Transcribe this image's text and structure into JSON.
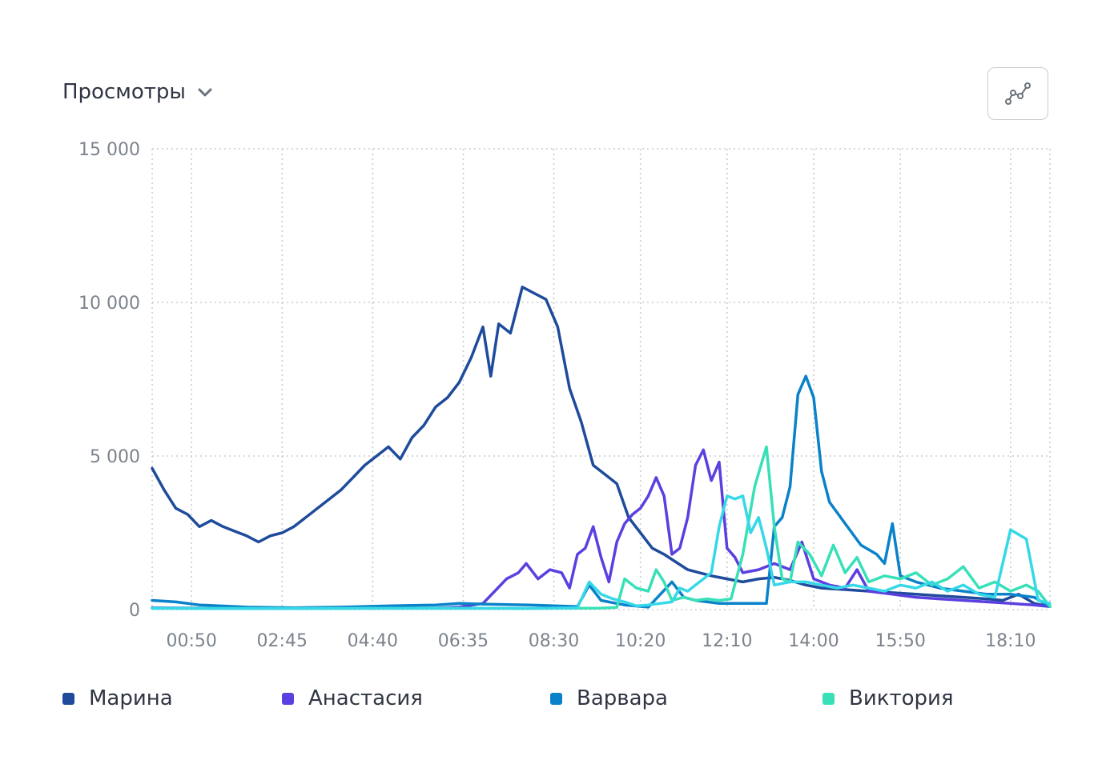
{
  "header": {
    "metric_label": "Просмотры"
  },
  "icons": {
    "metric_dropdown": "chevron-down-icon",
    "chart_type_button": "line-chart-icon"
  },
  "chart_data": {
    "type": "line",
    "ylim": [
      0,
      15000
    ],
    "y_ticks": [
      0,
      5000,
      10000,
      15000
    ],
    "y_tick_labels": [
      "0",
      "5 000",
      "10 000",
      "15 000"
    ],
    "x_range": [
      "00:00",
      "19:00"
    ],
    "x_ticks": [
      "00:50",
      "02:45",
      "04:40",
      "06:35",
      "08:30",
      "10:20",
      "12:10",
      "14:00",
      "15:50",
      "18:10"
    ],
    "grid": true,
    "legend_position": "bottom",
    "series": [
      {
        "name": "Марина",
        "color": "#1e4b9b",
        "points": [
          [
            "00:00",
            4600
          ],
          [
            "00:15",
            3900
          ],
          [
            "00:30",
            3300
          ],
          [
            "00:45",
            3100
          ],
          [
            "01:00",
            2700
          ],
          [
            "01:15",
            2900
          ],
          [
            "01:30",
            2700
          ],
          [
            "01:45",
            2550
          ],
          [
            "02:00",
            2400
          ],
          [
            "02:15",
            2200
          ],
          [
            "02:30",
            2400
          ],
          [
            "02:45",
            2500
          ],
          [
            "03:00",
            2700
          ],
          [
            "03:15",
            3000
          ],
          [
            "03:30",
            3300
          ],
          [
            "03:45",
            3600
          ],
          [
            "04:00",
            3900
          ],
          [
            "04:15",
            4300
          ],
          [
            "04:30",
            4700
          ],
          [
            "04:45",
            5000
          ],
          [
            "05:00",
            5300
          ],
          [
            "05:15",
            4900
          ],
          [
            "05:30",
            5600
          ],
          [
            "05:45",
            6000
          ],
          [
            "06:00",
            6600
          ],
          [
            "06:15",
            6900
          ],
          [
            "06:30",
            7400
          ],
          [
            "06:45",
            8200
          ],
          [
            "07:00",
            9200
          ],
          [
            "07:10",
            7600
          ],
          [
            "07:20",
            9300
          ],
          [
            "07:35",
            9000
          ],
          [
            "07:50",
            10500
          ],
          [
            "08:05",
            10300
          ],
          [
            "08:20",
            10100
          ],
          [
            "08:35",
            9200
          ],
          [
            "08:50",
            7200
          ],
          [
            "09:05",
            6100
          ],
          [
            "09:20",
            4700
          ],
          [
            "09:35",
            4400
          ],
          [
            "09:50",
            4100
          ],
          [
            "10:05",
            3000
          ],
          [
            "10:20",
            2500
          ],
          [
            "10:35",
            2000
          ],
          [
            "10:50",
            1800
          ],
          [
            "11:05",
            1550
          ],
          [
            "11:20",
            1300
          ],
          [
            "11:35",
            1200
          ],
          [
            "11:50",
            1100
          ],
          [
            "12:10",
            1000
          ],
          [
            "12:30",
            900
          ],
          [
            "12:50",
            1000
          ],
          [
            "13:10",
            1050
          ],
          [
            "13:30",
            950
          ],
          [
            "13:50",
            800
          ],
          [
            "14:10",
            700
          ],
          [
            "14:40",
            650
          ],
          [
            "15:10",
            600
          ],
          [
            "15:40",
            550
          ],
          [
            "16:10",
            500
          ],
          [
            "16:40",
            450
          ],
          [
            "17:10",
            400
          ],
          [
            "17:40",
            350
          ],
          [
            "18:00",
            300
          ],
          [
            "18:20",
            500
          ],
          [
            "18:40",
            200
          ],
          [
            "19:00",
            100
          ]
        ]
      },
      {
        "name": "Анастасия",
        "color": "#5b3fe0",
        "points": [
          [
            "00:00",
            60
          ],
          [
            "01:00",
            50
          ],
          [
            "02:00",
            50
          ],
          [
            "03:00",
            50
          ],
          [
            "04:00",
            50
          ],
          [
            "05:00",
            50
          ],
          [
            "06:00",
            50
          ],
          [
            "06:30",
            80
          ],
          [
            "07:00",
            200
          ],
          [
            "07:15",
            600
          ],
          [
            "07:30",
            1000
          ],
          [
            "07:45",
            1200
          ],
          [
            "07:55",
            1500
          ],
          [
            "08:10",
            1000
          ],
          [
            "08:25",
            1300
          ],
          [
            "08:40",
            1200
          ],
          [
            "08:50",
            700
          ],
          [
            "09:00",
            1800
          ],
          [
            "09:10",
            2000
          ],
          [
            "09:20",
            2700
          ],
          [
            "09:30",
            1700
          ],
          [
            "09:40",
            900
          ],
          [
            "09:50",
            2200
          ],
          [
            "10:00",
            2800
          ],
          [
            "10:10",
            3100
          ],
          [
            "10:20",
            3300
          ],
          [
            "10:30",
            3700
          ],
          [
            "10:40",
            4300
          ],
          [
            "10:50",
            3700
          ],
          [
            "11:00",
            1800
          ],
          [
            "11:10",
            2000
          ],
          [
            "11:20",
            3000
          ],
          [
            "11:30",
            4700
          ],
          [
            "11:40",
            5200
          ],
          [
            "11:50",
            4200
          ],
          [
            "12:00",
            4800
          ],
          [
            "12:10",
            2000
          ],
          [
            "12:20",
            1700
          ],
          [
            "12:30",
            1200
          ],
          [
            "12:50",
            1300
          ],
          [
            "13:10",
            1500
          ],
          [
            "13:30",
            1300
          ],
          [
            "13:45",
            2200
          ],
          [
            "14:00",
            1000
          ],
          [
            "14:20",
            800
          ],
          [
            "14:40",
            700
          ],
          [
            "14:55",
            1300
          ],
          [
            "15:10",
            600
          ],
          [
            "15:40",
            500
          ],
          [
            "16:10",
            400
          ],
          [
            "16:40",
            350
          ],
          [
            "17:10",
            300
          ],
          [
            "17:40",
            250
          ],
          [
            "18:10",
            200
          ],
          [
            "18:40",
            150
          ],
          [
            "19:00",
            100
          ]
        ]
      },
      {
        "name": "Варвара",
        "color": "#0a82c9",
        "points": [
          [
            "00:00",
            300
          ],
          [
            "00:30",
            250
          ],
          [
            "01:00",
            150
          ],
          [
            "02:00",
            80
          ],
          [
            "03:00",
            60
          ],
          [
            "04:00",
            80
          ],
          [
            "05:00",
            120
          ],
          [
            "06:00",
            150
          ],
          [
            "06:30",
            200
          ],
          [
            "07:00",
            180
          ],
          [
            "08:00",
            150
          ],
          [
            "09:00",
            100
          ],
          [
            "09:15",
            800
          ],
          [
            "09:30",
            300
          ],
          [
            "10:00",
            150
          ],
          [
            "10:30",
            80
          ],
          [
            "11:00",
            900
          ],
          [
            "11:15",
            400
          ],
          [
            "11:30",
            300
          ],
          [
            "12:00",
            200
          ],
          [
            "12:30",
            200
          ],
          [
            "13:00",
            200
          ],
          [
            "13:10",
            2700
          ],
          [
            "13:20",
            3000
          ],
          [
            "13:30",
            4000
          ],
          [
            "13:40",
            7000
          ],
          [
            "13:50",
            7600
          ],
          [
            "14:00",
            6900
          ],
          [
            "14:10",
            4500
          ],
          [
            "14:20",
            3500
          ],
          [
            "14:40",
            2800
          ],
          [
            "15:00",
            2100
          ],
          [
            "15:20",
            1800
          ],
          [
            "15:30",
            1500
          ],
          [
            "15:40",
            2800
          ],
          [
            "15:50",
            1100
          ],
          [
            "16:10",
            900
          ],
          [
            "16:40",
            700
          ],
          [
            "17:10",
            600
          ],
          [
            "17:40",
            500
          ],
          [
            "18:10",
            500
          ],
          [
            "18:40",
            400
          ],
          [
            "19:00",
            100
          ]
        ]
      },
      {
        "name": "Виктория",
        "color": "#38e0b8",
        "points": [
          [
            "00:00",
            50
          ],
          [
            "02:00",
            40
          ],
          [
            "04:00",
            40
          ],
          [
            "06:00",
            50
          ],
          [
            "08:00",
            40
          ],
          [
            "09:30",
            50
          ],
          [
            "09:50",
            70
          ],
          [
            "10:00",
            1000
          ],
          [
            "10:15",
            700
          ],
          [
            "10:30",
            600
          ],
          [
            "10:40",
            1300
          ],
          [
            "10:50",
            900
          ],
          [
            "11:00",
            300
          ],
          [
            "11:15",
            400
          ],
          [
            "11:30",
            300
          ],
          [
            "11:45",
            350
          ],
          [
            "12:00",
            300
          ],
          [
            "12:15",
            350
          ],
          [
            "12:30",
            1800
          ],
          [
            "12:45",
            4000
          ],
          [
            "13:00",
            5300
          ],
          [
            "13:10",
            2700
          ],
          [
            "13:20",
            1000
          ],
          [
            "13:30",
            900
          ],
          [
            "13:40",
            2200
          ],
          [
            "13:55",
            1800
          ],
          [
            "14:10",
            1100
          ],
          [
            "14:25",
            2100
          ],
          [
            "14:40",
            1200
          ],
          [
            "14:55",
            1700
          ],
          [
            "15:10",
            900
          ],
          [
            "15:30",
            1100
          ],
          [
            "15:50",
            1000
          ],
          [
            "16:10",
            1200
          ],
          [
            "16:30",
            800
          ],
          [
            "16:50",
            1000
          ],
          [
            "17:10",
            1400
          ],
          [
            "17:30",
            700
          ],
          [
            "17:50",
            900
          ],
          [
            "18:10",
            600
          ],
          [
            "18:30",
            800
          ],
          [
            "18:45",
            600
          ],
          [
            "19:00",
            100
          ]
        ]
      },
      {
        "name": "",
        "color": "#36d8e8",
        "points": [
          [
            "00:00",
            40
          ],
          [
            "02:00",
            30
          ],
          [
            "04:00",
            40
          ],
          [
            "06:00",
            40
          ],
          [
            "08:00",
            40
          ],
          [
            "09:00",
            60
          ],
          [
            "09:15",
            900
          ],
          [
            "09:30",
            500
          ],
          [
            "09:45",
            350
          ],
          [
            "10:00",
            250
          ],
          [
            "10:15",
            120
          ],
          [
            "10:30",
            150
          ],
          [
            "10:45",
            200
          ],
          [
            "11:00",
            250
          ],
          [
            "11:10",
            700
          ],
          [
            "11:20",
            600
          ],
          [
            "11:30",
            800
          ],
          [
            "11:40",
            1000
          ],
          [
            "11:50",
            1200
          ],
          [
            "12:00",
            2700
          ],
          [
            "12:10",
            3700
          ],
          [
            "12:20",
            3600
          ],
          [
            "12:30",
            3700
          ],
          [
            "12:40",
            2500
          ],
          [
            "12:50",
            3000
          ],
          [
            "13:00",
            2000
          ],
          [
            "13:10",
            800
          ],
          [
            "13:30",
            900
          ],
          [
            "13:50",
            900
          ],
          [
            "14:10",
            800
          ],
          [
            "14:30",
            700
          ],
          [
            "14:50",
            800
          ],
          [
            "15:10",
            700
          ],
          [
            "15:30",
            600
          ],
          [
            "15:50",
            800
          ],
          [
            "16:10",
            700
          ],
          [
            "16:30",
            900
          ],
          [
            "16:50",
            600
          ],
          [
            "17:10",
            800
          ],
          [
            "17:30",
            500
          ],
          [
            "17:50",
            400
          ],
          [
            "18:10",
            2600
          ],
          [
            "18:30",
            2300
          ],
          [
            "18:45",
            300
          ],
          [
            "19:00",
            200
          ]
        ]
      }
    ]
  }
}
